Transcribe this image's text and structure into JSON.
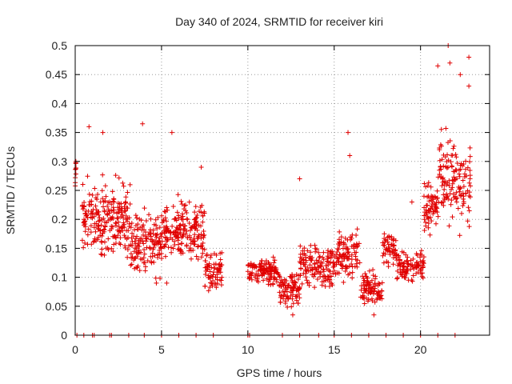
{
  "chart_data": {
    "type": "scatter",
    "title": "Day 340 of 2024, SRMTID for receiver kiri",
    "xlabel": "GPS time / hours",
    "ylabel": "SRMTID / TECUs",
    "xlim": [
      0,
      24
    ],
    "ylim": [
      0,
      0.5
    ],
    "xticks": [
      0,
      5,
      10,
      15,
      20
    ],
    "xtick_labels": [
      "0",
      "5",
      "10",
      "15",
      "20"
    ],
    "yticks": [
      0,
      0.05,
      0.1,
      0.15,
      0.2,
      0.25,
      0.3,
      0.35,
      0.4,
      0.45,
      0.5
    ],
    "ytick_labels": [
      "0",
      "0.05",
      "0.1",
      "0.15",
      "0.2",
      "0.25",
      "0.3",
      "0.35",
      "0.4",
      "0.45",
      "0.5"
    ],
    "grid": true,
    "marker": "+",
    "marker_color": "#e00000",
    "series": [
      {
        "name": "SRMTID",
        "segments": [
          {
            "x_start": 0.0,
            "x_end": 0.05,
            "y_base": 0.28,
            "y_spread": 0.03,
            "n": 10
          },
          {
            "x_start": 0.4,
            "x_end": 3.2,
            "y_base": 0.2,
            "y_spread": 0.09,
            "n": 230
          },
          {
            "x_start": 3.2,
            "x_end": 5.0,
            "y_base": 0.16,
            "y_spread": 0.07,
            "n": 140
          },
          {
            "x_start": 5.0,
            "x_end": 7.5,
            "y_base": 0.18,
            "y_spread": 0.07,
            "n": 200
          },
          {
            "x_start": 7.5,
            "x_end": 8.5,
            "y_base": 0.11,
            "y_spread": 0.05,
            "n": 70
          },
          {
            "x_start": 10.0,
            "x_end": 11.8,
            "y_base": 0.11,
            "y_spread": 0.03,
            "n": 120
          },
          {
            "x_start": 11.8,
            "x_end": 13.0,
            "y_base": 0.08,
            "y_spread": 0.04,
            "n": 90
          },
          {
            "x_start": 13.0,
            "x_end": 15.2,
            "y_base": 0.12,
            "y_spread": 0.05,
            "n": 150
          },
          {
            "x_start": 15.2,
            "x_end": 16.5,
            "y_base": 0.14,
            "y_spread": 0.06,
            "n": 90
          },
          {
            "x_start": 16.5,
            "x_end": 17.8,
            "y_base": 0.08,
            "y_spread": 0.04,
            "n": 90
          },
          {
            "x_start": 17.8,
            "x_end": 18.6,
            "y_base": 0.15,
            "y_spread": 0.04,
            "n": 50
          },
          {
            "x_start": 18.6,
            "x_end": 20.2,
            "y_base": 0.12,
            "y_spread": 0.04,
            "n": 100
          },
          {
            "x_start": 20.2,
            "x_end": 21.0,
            "y_base": 0.22,
            "y_spread": 0.06,
            "n": 60
          },
          {
            "x_start": 21.0,
            "x_end": 22.9,
            "y_base": 0.27,
            "y_spread": 0.11,
            "n": 140
          }
        ],
        "outliers": [
          {
            "x": 0.8,
            "y": 0.36
          },
          {
            "x": 1.6,
            "y": 0.35
          },
          {
            "x": 3.9,
            "y": 0.365
          },
          {
            "x": 5.6,
            "y": 0.35
          },
          {
            "x": 7.3,
            "y": 0.29
          },
          {
            "x": 13.0,
            "y": 0.27
          },
          {
            "x": 15.8,
            "y": 0.35
          },
          {
            "x": 15.9,
            "y": 0.31
          },
          {
            "x": 19.5,
            "y": 0.23
          },
          {
            "x": 20.2,
            "y": 0.24
          },
          {
            "x": 21.0,
            "y": 0.465
          },
          {
            "x": 21.6,
            "y": 0.5
          },
          {
            "x": 21.7,
            "y": 0.47
          },
          {
            "x": 22.3,
            "y": 0.45
          },
          {
            "x": 22.8,
            "y": 0.48
          },
          {
            "x": 22.8,
            "y": 0.43
          },
          {
            "x": 5.3,
            "y": 0.09
          },
          {
            "x": 4.7,
            "y": 0.09
          },
          {
            "x": 12.6,
            "y": 0.035
          },
          {
            "x": 17.3,
            "y": 0.035
          }
        ],
        "zero_marks": [
          0.1,
          0.5,
          1.0,
          1.1,
          2.0,
          2.1,
          3.1,
          4.0,
          5.0,
          6.0,
          7.0,
          8.0,
          10.0,
          10.1,
          12.0,
          13.0,
          14.1,
          15.0,
          16.0,
          17.0,
          18.0,
          19.0,
          20.0,
          21.0,
          22.0
        ]
      }
    ]
  }
}
